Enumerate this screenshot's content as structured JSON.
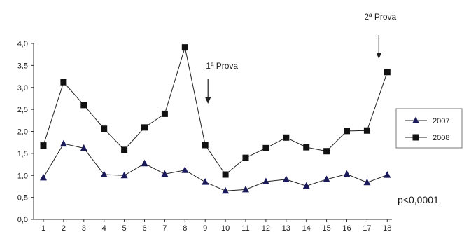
{
  "chart_data": {
    "type": "line",
    "x": [
      "1",
      "2",
      "3",
      "4",
      "5",
      "6",
      "7",
      "8",
      "9",
      "10",
      "11",
      "12",
      "13",
      "14",
      "15",
      "16",
      "17",
      "18"
    ],
    "ylim": [
      0,
      4
    ],
    "ytick_labels": [
      "0,0",
      "0,5",
      "1,0",
      "1,5",
      "2,0",
      "2,5",
      "3,0",
      "3,5",
      "4,0"
    ],
    "grid": false,
    "legend_position": "right",
    "series": [
      {
        "name": "2007",
        "marker": "triangle",
        "color": "#1a1a5a",
        "values": [
          0.95,
          1.72,
          1.62,
          1.02,
          1.0,
          1.27,
          1.03,
          1.12,
          0.85,
          0.65,
          0.68,
          0.86,
          0.91,
          0.76,
          0.91,
          1.03,
          0.84,
          1.01
        ]
      },
      {
        "name": "2008",
        "marker": "square",
        "color": "#111111",
        "values": [
          1.68,
          3.12,
          2.6,
          2.06,
          1.58,
          2.09,
          2.4,
          3.91,
          1.69,
          1.02,
          1.4,
          1.62,
          1.86,
          1.64,
          1.55,
          2.01,
          2.02,
          3.35
        ]
      }
    ],
    "annotations": [
      {
        "label": "1ª Prova",
        "x_index": 8,
        "text": "1ª Prova"
      },
      {
        "label": "2ª Prova",
        "x_index": 17,
        "text": "2ª Prova"
      }
    ],
    "pvalue": "p<0,0001"
  }
}
